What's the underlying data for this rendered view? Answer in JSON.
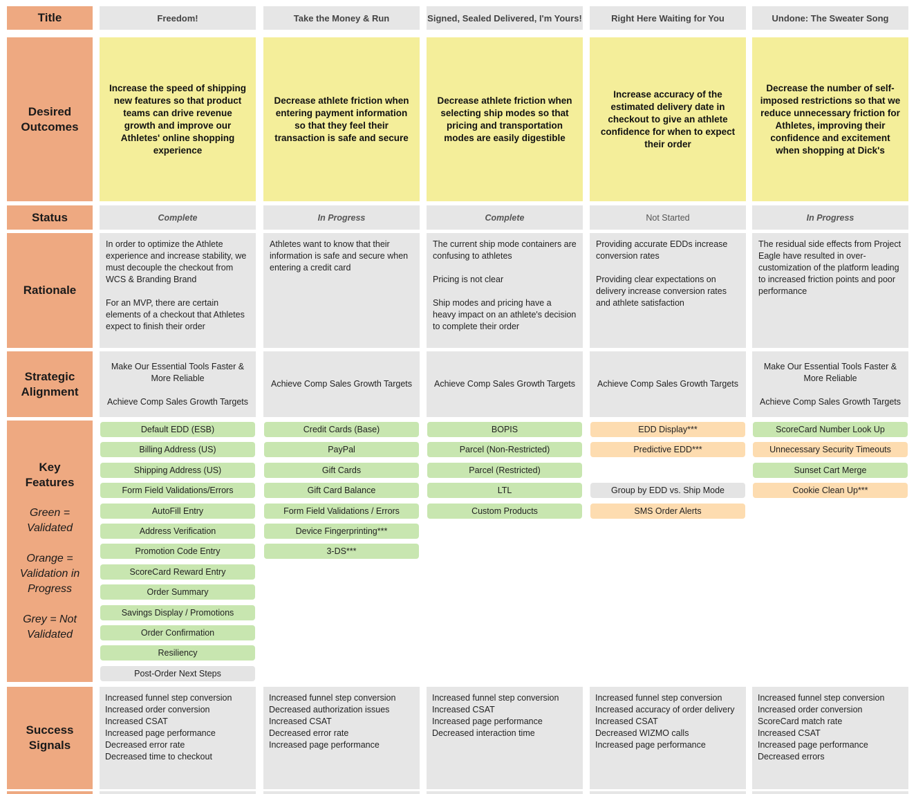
{
  "row_labels": {
    "title": "Title",
    "outcomes": "Desired\nOutcomes",
    "status": "Status",
    "rationale": "Rationale",
    "alignment": "Strategic\nAlignment",
    "features": "Key\nFeatures",
    "signals": "Success\nSignals"
  },
  "legend": {
    "green": "Green =\nValidated",
    "orange": "Orange =\nValidation in\nProgress",
    "grey": "Grey = Not\nValidated"
  },
  "colors": {
    "label": "#eea981",
    "outcome": "#f4ee9a",
    "green": "#c8e6b0",
    "orange": "#fddcb0",
    "grey": "#e4e4e4",
    "cell": "#e6e6e6"
  },
  "columns": [
    {
      "title": "Freedom!",
      "outcome": "Increase the speed of shipping new features so that product teams can drive revenue growth and improve our Athletes' online shopping experience",
      "status": "Complete",
      "rationale": "In order to optimize the Athlete experience and increase stability, we must decouple the checkout from WCS & Branding Brand\n\nFor an MVP, there are certain elements of a checkout that Athletes expect to finish their order",
      "alignment": "Make Our Essential Tools Faster & More Reliable\n\nAchieve Comp Sales Growth Targets",
      "features": [
        {
          "label": "Default EDD (ESB)",
          "state": "green"
        },
        {
          "label": "Billing Address (US)",
          "state": "green"
        },
        {
          "label": "Shipping Address (US)",
          "state": "green"
        },
        {
          "label": "Form Field Validations/Errors",
          "state": "green"
        },
        {
          "label": "AutoFill Entry",
          "state": "green"
        },
        {
          "label": "Address Verification",
          "state": "green"
        },
        {
          "label": "Promotion Code Entry",
          "state": "green"
        },
        {
          "label": "ScoreCard Reward Entry",
          "state": "green"
        },
        {
          "label": "Order Summary",
          "state": "green"
        },
        {
          "label": "Savings Display / Promotions",
          "state": "green"
        },
        {
          "label": "Order Confirmation",
          "state": "green"
        },
        {
          "label": "Resiliency",
          "state": "green"
        },
        {
          "label": "Post-Order Next Steps",
          "state": "grey"
        }
      ],
      "signals": "Increased funnel step conversion\nIncreased order conversion\nIncreased CSAT\nIncreased page performance\nDecreased error rate\nDecreased time to checkout"
    },
    {
      "title": "Take the Money & Run",
      "outcome": "Decrease athlete friction when entering payment information so that they feel their transaction is safe and secure",
      "status": "In Progress",
      "rationale": "Athletes want to know that their information is safe and secure when entering a credit card",
      "alignment": "Achieve Comp Sales Growth Targets",
      "features": [
        {
          "label": "Credit Cards (Base)",
          "state": "green"
        },
        {
          "label": "PayPal",
          "state": "green"
        },
        {
          "label": "Gift Cards",
          "state": "green"
        },
        {
          "label": "Gift Card Balance",
          "state": "green"
        },
        {
          "label": "Form Field Validations / Errors",
          "state": "green"
        },
        {
          "label": "Device Fingerprinting***",
          "state": "green"
        },
        {
          "label": "3-DS***",
          "state": "green"
        }
      ],
      "signals": "Increased funnel step conversion\nDecreased authorization issues\nIncreased CSAT\nDecreased error rate\nIncreased page performance"
    },
    {
      "title": "Signed, Sealed Delivered, I'm Yours!",
      "outcome": "Decrease athlete friction when selecting ship modes so that pricing and transportation modes are easily digestible",
      "status": "Complete",
      "rationale": "The current ship mode containers are confusing to athletes\n\nPricing is not clear\n\nShip modes and pricing have a heavy impact on an athlete's decision to complete their order",
      "alignment": "Achieve Comp Sales Growth Targets",
      "features": [
        {
          "label": "BOPIS",
          "state": "green"
        },
        {
          "label": "Parcel (Non-Restricted)",
          "state": "green"
        },
        {
          "label": "Parcel (Restricted)",
          "state": "green"
        },
        {
          "label": "LTL",
          "state": "green"
        },
        {
          "label": "Custom Products",
          "state": "green"
        }
      ],
      "signals": "Increased funnel step conversion\nIncreased CSAT\nIncreased page performance\nDecreased interaction time"
    },
    {
      "title": "Right Here Waiting for You",
      "outcome": "Increase accuracy of the estimated delivery date in checkout to give an athlete confidence for when to expect their order",
      "status": "Not Started",
      "rationale": "Providing accurate EDDs increase conversion rates\n\nProviding clear expectations on delivery increase conversion rates and athlete satisfaction",
      "alignment": "Achieve Comp Sales Growth Targets",
      "features": [
        {
          "label": "EDD Display***",
          "state": "orange"
        },
        {
          "label": "Predictive EDD***",
          "state": "orange"
        },
        {
          "label": "",
          "state": "none"
        },
        {
          "label": "Group by EDD vs. Ship Mode",
          "state": "grey"
        },
        {
          "label": "SMS Order Alerts",
          "state": "orange"
        }
      ],
      "signals": "Increased funnel step conversion\nIncreased accuracy of order delivery\nIncreased CSAT\nDecreased WIZMO calls\nIncreased page performance"
    },
    {
      "title": "Undone: The Sweater Song",
      "outcome": "Decrease the number of self-imposed restrictions so that we reduce unnecessary friction for Athletes, improving their confidence and excitement when shopping at Dick's",
      "status": "In Progress",
      "rationale": "The residual side effects from Project Eagle have resulted in over-customization of the platform leading to increased friction points and poor performance",
      "alignment": "Make Our Essential Tools Faster & More Reliable\n\nAchieve Comp Sales Growth Targets",
      "features": [
        {
          "label": "ScoreCard Number Look Up",
          "state": "green"
        },
        {
          "label": "Unnecessary Security Timeouts",
          "state": "orange"
        },
        {
          "label": "Sunset Cart Merge",
          "state": "green"
        },
        {
          "label": "Cookie Clean Up***",
          "state": "orange"
        }
      ],
      "signals": "Increased funnel step conversion\nIncreased order conversion\nScoreCard match rate\nIncreased CSAT\nIncreased page performance\nDecreased errors"
    }
  ]
}
